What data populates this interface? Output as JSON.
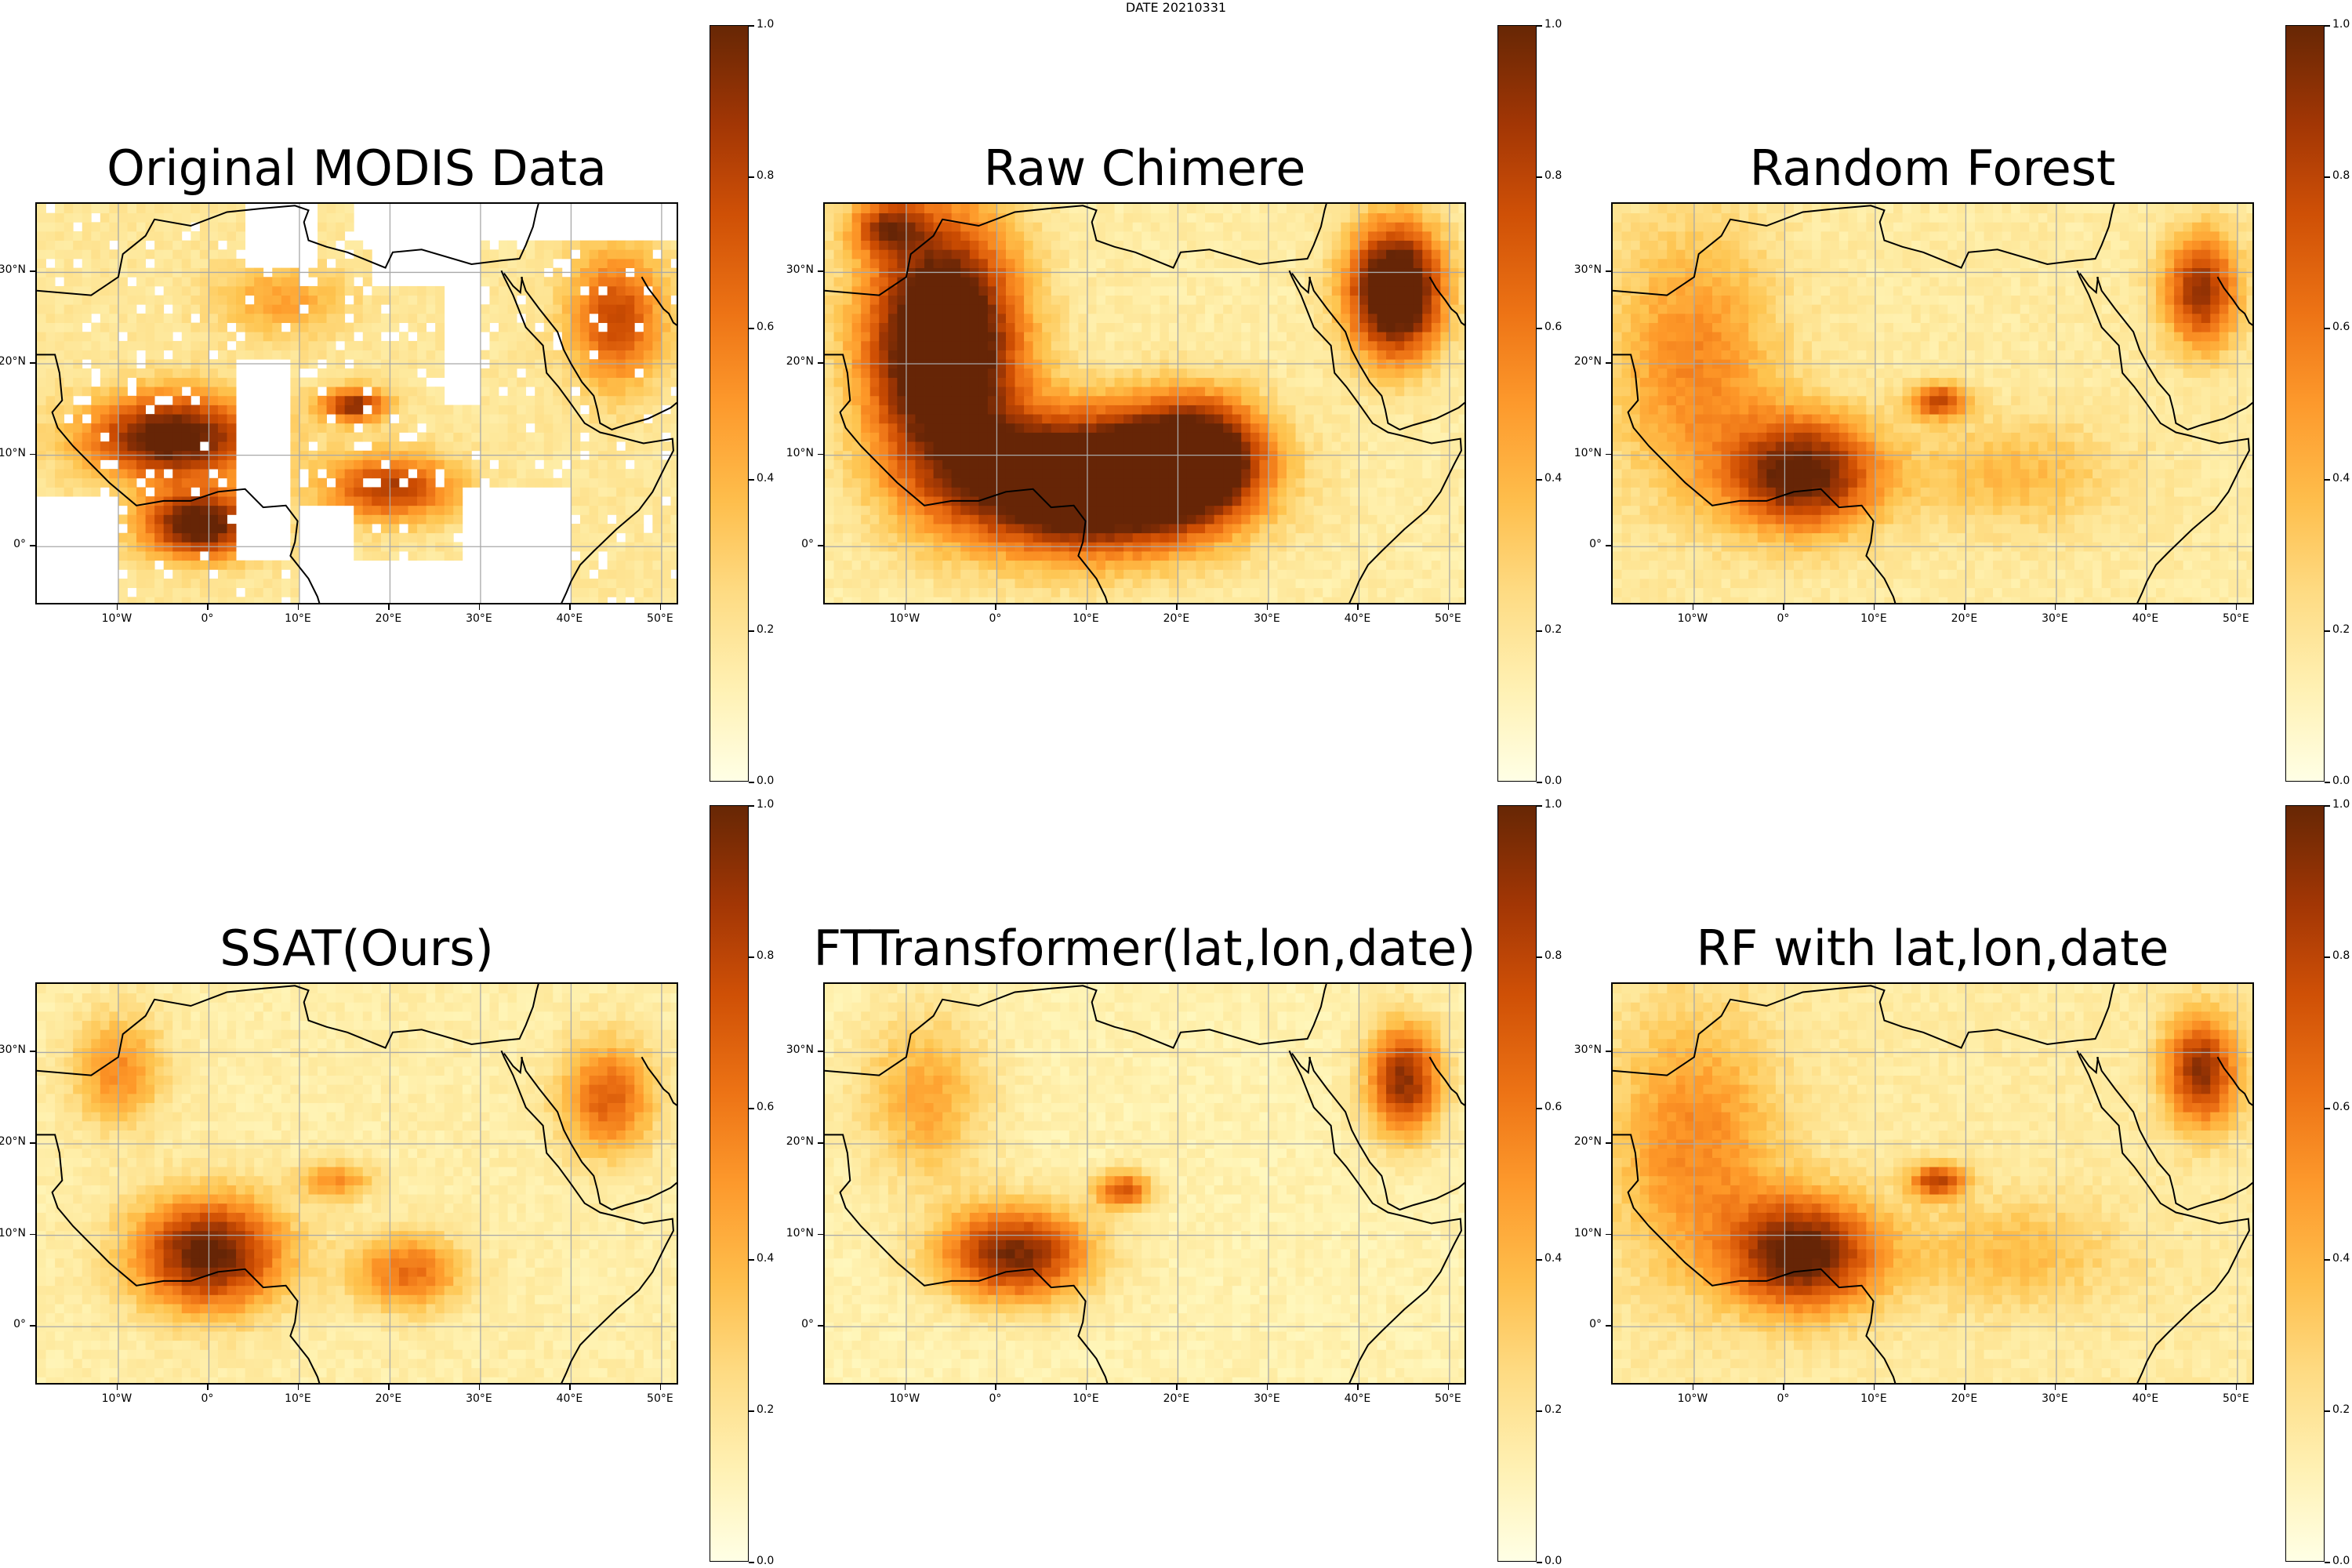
{
  "figure": {
    "suptitle": "DATE 20210331"
  },
  "colormap": {
    "name": "YlOrBr",
    "stops": [
      "#ffffe5",
      "#fff7bc",
      "#fee391",
      "#fec44f",
      "#fe9929",
      "#ec7014",
      "#cc4c02",
      "#993404",
      "#662506"
    ]
  },
  "axes": {
    "x_ticks": [
      "10°W",
      "0°",
      "10°E",
      "20°E",
      "30°E",
      "40°E",
      "50°E"
    ],
    "x_tick_values": [
      -10,
      0,
      10,
      20,
      30,
      40,
      50
    ],
    "y_ticks": [
      "30°N",
      "20°N",
      "10°N",
      "0°"
    ],
    "y_tick_values": [
      30,
      20,
      10,
      0
    ],
    "lon_range": [
      -19,
      52
    ],
    "lat_range": [
      -6.5,
      37.5
    ],
    "gridlines": true,
    "coastlines": true
  },
  "colorbar": {
    "ticks": [
      "0.0",
      "0.2",
      "0.4",
      "0.6",
      "0.8",
      "1.0"
    ],
    "range": [
      0,
      1
    ]
  },
  "panels": [
    {
      "id": "modis",
      "title": "Original MODIS Data"
    },
    {
      "id": "chimere",
      "title": "Raw Chimere"
    },
    {
      "id": "rf",
      "title": "Random Forest"
    },
    {
      "id": "ssat",
      "title": "SSAT(Ours)"
    },
    {
      "id": "ftt",
      "title": "FTTransformer(lat,lon,date)"
    },
    {
      "id": "rfll",
      "title": "RF with lat,lon,date"
    }
  ],
  "chart_data": {
    "type": "heatmap",
    "title": "DATE 20210331",
    "value_range": [
      0,
      1
    ],
    "colorbar_ticks": [
      0.0,
      0.2,
      0.4,
      0.6,
      0.8,
      1.0
    ],
    "x_ticks": [
      -10,
      0,
      10,
      20,
      30,
      40,
      50
    ],
    "y_ticks": [
      0,
      10,
      20,
      30
    ],
    "panels": [
      {
        "title": "Original MODIS Data",
        "missing_regions": true,
        "hotspots": [
          {
            "lon": -3,
            "lat": 12,
            "value": 1.0
          },
          {
            "lon": -1,
            "lat": 3,
            "value": 1.0
          },
          {
            "lon": 16,
            "lat": 16,
            "value": 0.95
          },
          {
            "lon": 18,
            "lat": 6,
            "value": 0.85
          },
          {
            "lon": 45,
            "lat": 25,
            "value": 0.7
          }
        ]
      },
      {
        "title": "Raw Chimere",
        "hotspots": [
          {
            "lon": -6,
            "lat": 22,
            "value": 1.0
          },
          {
            "lon": 8,
            "lat": 8,
            "value": 1.0
          },
          {
            "lon": 44,
            "lat": 28,
            "value": 1.0
          }
        ]
      },
      {
        "title": "Random Forest",
        "hotspots": [
          {
            "lon": 2,
            "lat": 8,
            "value": 0.95
          },
          {
            "lon": 17,
            "lat": 16,
            "value": 0.95
          },
          {
            "lon": 46,
            "lat": 28,
            "value": 0.85
          }
        ]
      },
      {
        "title": "SSAT(Ours)",
        "hotspots": [
          {
            "lon": 0,
            "lat": 8,
            "value": 0.95
          },
          {
            "lon": 22,
            "lat": 6,
            "value": 0.75
          },
          {
            "lon": 44,
            "lat": 25,
            "value": 0.75
          }
        ]
      },
      {
        "title": "FTTransformer(lat,lon,date)",
        "hotspots": [
          {
            "lon": 2,
            "lat": 8,
            "value": 0.9
          },
          {
            "lon": 14,
            "lat": 15,
            "value": 0.85
          },
          {
            "lon": 45,
            "lat": 27,
            "value": 0.9
          }
        ]
      },
      {
        "title": "RF with lat,lon,date",
        "hotspots": [
          {
            "lon": 2,
            "lat": 8,
            "value": 0.95
          },
          {
            "lon": 17,
            "lat": 16,
            "value": 0.95
          },
          {
            "lon": 46,
            "lat": 28,
            "value": 0.85
          }
        ]
      }
    ]
  }
}
